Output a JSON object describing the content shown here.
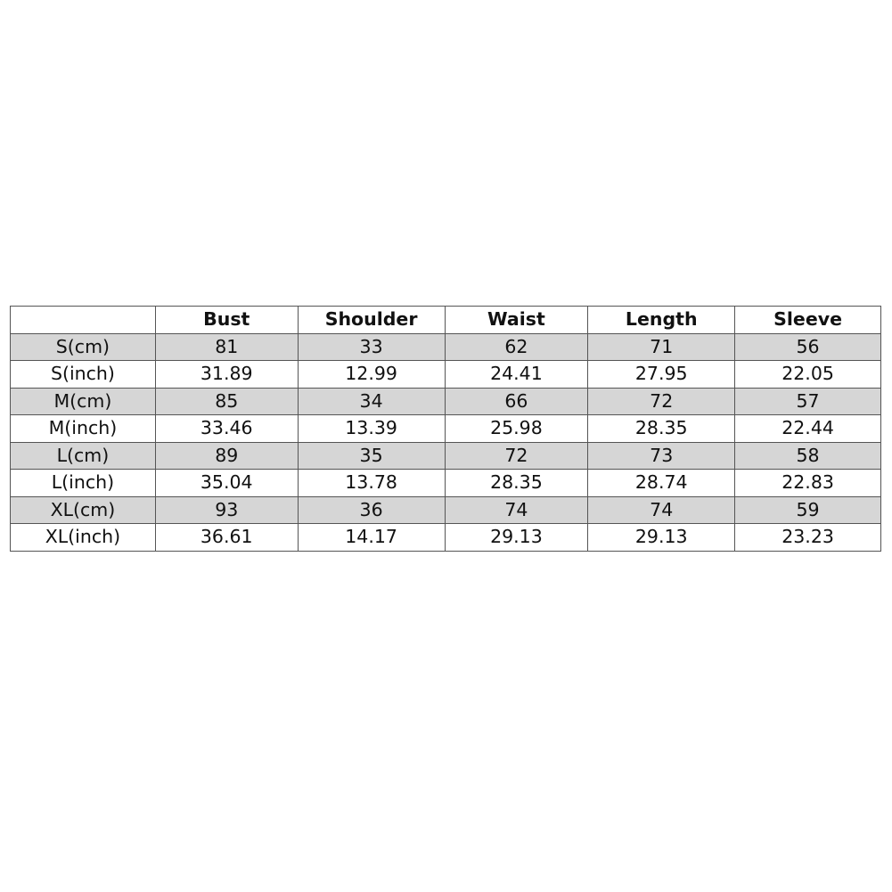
{
  "table": {
    "headers": [
      "",
      "Bust",
      "Shoulder",
      "Waist",
      "Length",
      "Sleeve"
    ],
    "rows": [
      [
        "S(cm)",
        "81",
        "33",
        "62",
        "71",
        "56"
      ],
      [
        "S(inch)",
        "31.89",
        "12.99",
        "24.41",
        "27.95",
        "22.05"
      ],
      [
        "M(cm)",
        "85",
        "34",
        "66",
        "72",
        "57"
      ],
      [
        "M(inch)",
        "33.46",
        "13.39",
        "25.98",
        "28.35",
        "22.44"
      ],
      [
        "L(cm)",
        "89",
        "35",
        "72",
        "73",
        "58"
      ],
      [
        "L(inch)",
        "35.04",
        "13.78",
        "28.35",
        "28.74",
        "22.83"
      ],
      [
        "XL(cm)",
        "93",
        "36",
        "74",
        "74",
        "59"
      ],
      [
        "XL(inch)",
        "36.61",
        "14.17",
        "29.13",
        "29.13",
        "23.23"
      ]
    ],
    "shade_color": "#d6d6d6"
  }
}
